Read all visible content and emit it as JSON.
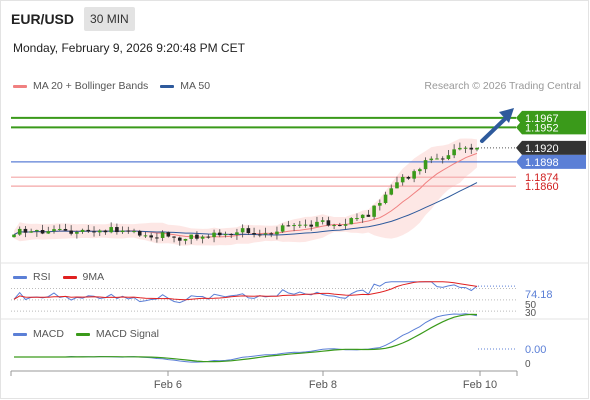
{
  "header": {
    "symbol": "EUR/USD",
    "timeframe": "30 MIN"
  },
  "datetime": "Monday, February 9, 2026 9:20:48 PM CET",
  "credit": "Research © 2026 Trading Central",
  "legends": {
    "main": [
      {
        "label": "MA 20 + Bollinger Bands",
        "color": "#f08080"
      },
      {
        "label": "MA 50",
        "color": "#2e5a9c"
      }
    ],
    "rsi": [
      {
        "label": "RSI",
        "color": "#5b7fd6"
      },
      {
        "label": "9MA",
        "color": "#e02020"
      }
    ],
    "macd": [
      {
        "label": "MACD",
        "color": "#5b7fd6"
      },
      {
        "label": "MACD Signal",
        "color": "#3a9a1a"
      }
    ]
  },
  "colors": {
    "candle_up": "#3a9a1a",
    "candle_down": "#222222",
    "wick": "#444444",
    "target_line": "#3a9a1a",
    "pivot_line": "#5b7fd6",
    "support_line": "#f4a6a6",
    "current_tag": "#333333",
    "arrow": "#2e5a9c",
    "bb_fill": "#fde3e1"
  },
  "chart_data": [
    {
      "type": "candlestick",
      "title": "EUR/USD 30 MIN",
      "ylim": [
        1.1752,
        1.1995
      ],
      "x_ticks": [
        "Feb 6",
        "Feb 8",
        "Feb 10"
      ],
      "levels": [
        {
          "label": "1.1967",
          "value": 1.1967,
          "kind": "target",
          "tag": "solid"
        },
        {
          "label": "1.1952",
          "value": 1.1952,
          "kind": "target",
          "tag": "solid"
        },
        {
          "label": "1.1920",
          "value": 1.192,
          "kind": "current",
          "tag": "solid"
        },
        {
          "label": "1.1898",
          "value": 1.1898,
          "kind": "pivot",
          "tag": "solid"
        },
        {
          "label": "1.1874",
          "value": 1.1874,
          "kind": "support",
          "tag": "text"
        },
        {
          "label": "1.1860",
          "value": 1.186,
          "kind": "support",
          "tag": "text"
        }
      ],
      "ma_and_bands": [
        "MA 20 + Bollinger Bands",
        "MA 50"
      ],
      "annotation": "bullish arrow toward 1.1967"
    },
    {
      "type": "line",
      "title": "RSI",
      "series": [
        {
          "name": "RSI"
        },
        {
          "name": "9MA"
        }
      ],
      "ylim": [
        25,
        85
      ],
      "levels": [
        70,
        50,
        30
      ],
      "last_value": "74.18",
      "tick_labels": [
        "30",
        "50"
      ]
    },
    {
      "type": "line",
      "title": "MACD",
      "series": [
        {
          "name": "MACD"
        },
        {
          "name": "MACD Signal"
        }
      ],
      "last_value": "0.00",
      "tick_labels": [
        "0"
      ]
    }
  ]
}
